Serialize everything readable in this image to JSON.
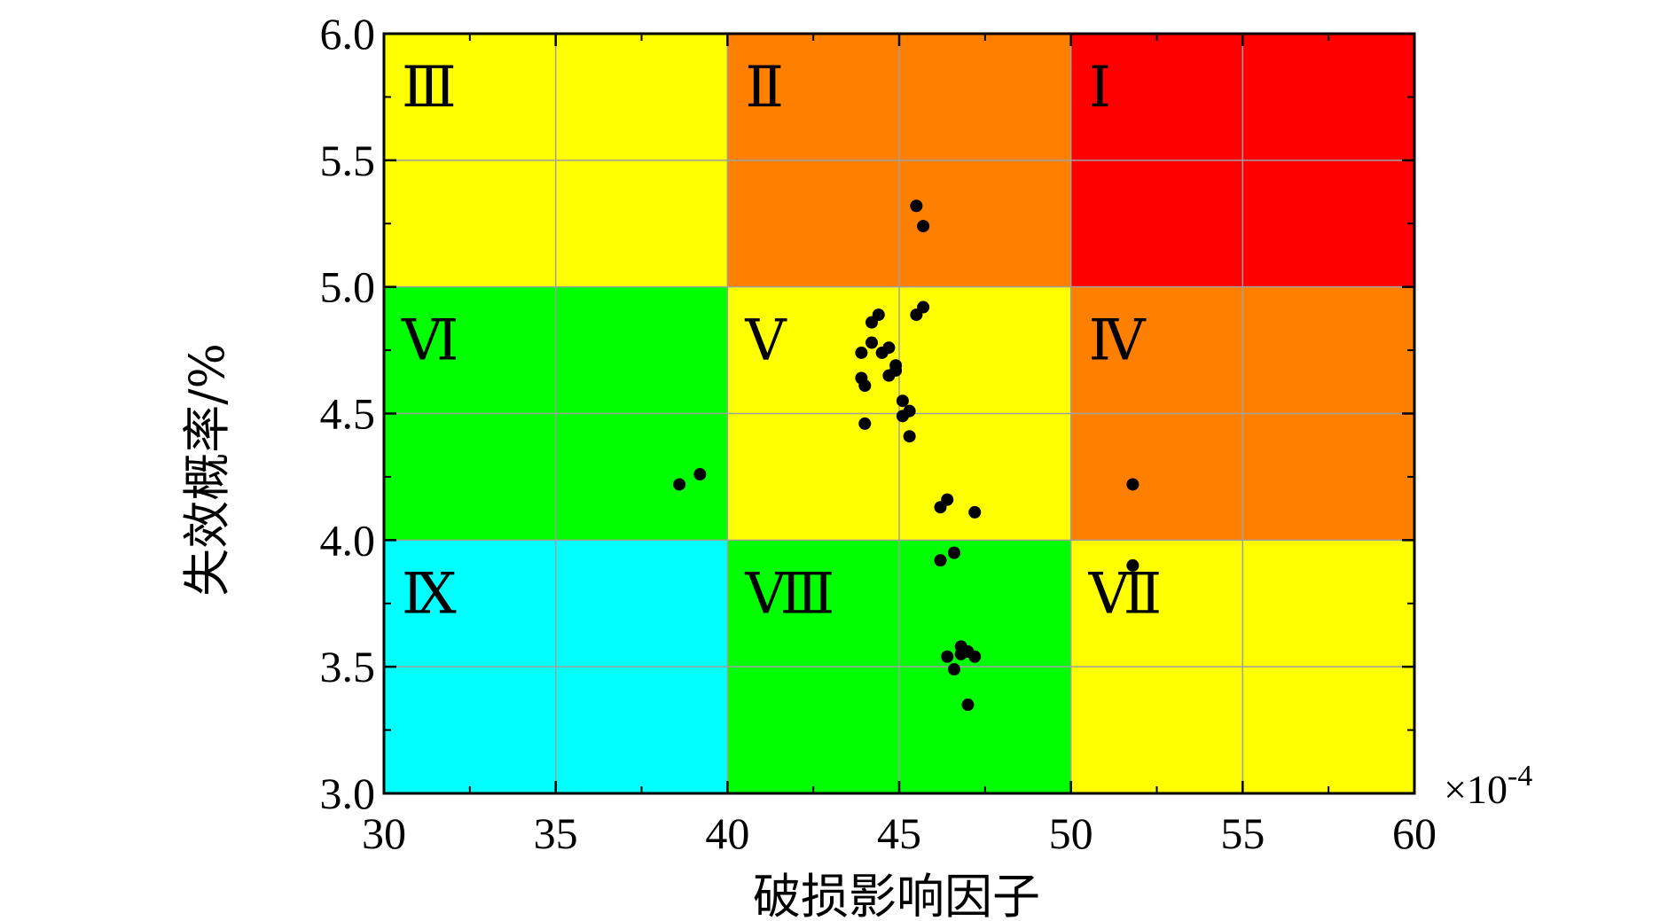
{
  "chart_data": {
    "type": "scatter",
    "title": "",
    "xlabel": "破损影响因子",
    "ylabel": "失效概率/%",
    "x_multiplier": "×10",
    "x_multiplier_exp": "-4",
    "xlim": [
      30,
      60
    ],
    "ylim": [
      3.0,
      6.0
    ],
    "xticks": [
      "30",
      "35",
      "40",
      "45",
      "50",
      "55",
      "60"
    ],
    "yticks": [
      "3.0",
      "3.5",
      "4.0",
      "4.5",
      "5.0",
      "5.5",
      "6.0"
    ],
    "grid": true,
    "regions": [
      {
        "label": "Ⅰ",
        "x": [
          50,
          60
        ],
        "y": [
          5,
          6
        ],
        "color": "#ff0000"
      },
      {
        "label": "Ⅱ",
        "x": [
          40,
          50
        ],
        "y": [
          5,
          6
        ],
        "color": "#ff8000"
      },
      {
        "label": "Ⅲ",
        "x": [
          30,
          40
        ],
        "y": [
          5,
          6
        ],
        "color": "#ffff00"
      },
      {
        "label": "Ⅳ",
        "x": [
          50,
          60
        ],
        "y": [
          4,
          5
        ],
        "color": "#ff8000"
      },
      {
        "label": "Ⅴ",
        "x": [
          40,
          50
        ],
        "y": [
          4,
          5
        ],
        "color": "#ffff00"
      },
      {
        "label": "Ⅵ",
        "x": [
          30,
          40
        ],
        "y": [
          4,
          5
        ],
        "color": "#00ff00"
      },
      {
        "label": "Ⅶ",
        "x": [
          50,
          60
        ],
        "y": [
          3,
          4
        ],
        "color": "#ffff00"
      },
      {
        "label": "Ⅷ",
        "x": [
          40,
          50
        ],
        "y": [
          3,
          4
        ],
        "color": "#00ff00"
      },
      {
        "label": "Ⅸ",
        "x": [
          30,
          40
        ],
        "y": [
          3,
          4
        ],
        "color": "#00ffff"
      }
    ],
    "series": [
      {
        "points": [
          [
            45.5,
            5.32
          ],
          [
            45.7,
            5.24
          ],
          [
            45.7,
            4.92
          ],
          [
            45.5,
            4.89
          ],
          [
            44.4,
            4.89
          ],
          [
            44.2,
            4.86
          ],
          [
            44.2,
            4.78
          ],
          [
            44.7,
            4.76
          ],
          [
            43.9,
            4.74
          ],
          [
            44.5,
            4.74
          ],
          [
            44.9,
            4.69
          ],
          [
            44.9,
            4.67
          ],
          [
            44.7,
            4.65
          ],
          [
            43.9,
            4.64
          ],
          [
            44.0,
            4.61
          ],
          [
            45.1,
            4.55
          ],
          [
            45.3,
            4.51
          ],
          [
            45.1,
            4.49
          ],
          [
            44.0,
            4.46
          ],
          [
            45.3,
            4.41
          ],
          [
            38.6,
            4.22
          ],
          [
            39.2,
            4.26
          ],
          [
            46.4,
            4.16
          ],
          [
            46.2,
            4.13
          ],
          [
            47.2,
            4.11
          ],
          [
            51.8,
            4.22
          ],
          [
            51.8,
            3.9
          ],
          [
            46.6,
            3.95
          ],
          [
            46.2,
            3.92
          ],
          [
            46.8,
            3.58
          ],
          [
            47.0,
            3.56
          ],
          [
            46.8,
            3.55
          ],
          [
            46.4,
            3.54
          ],
          [
            47.2,
            3.54
          ],
          [
            46.6,
            3.49
          ],
          [
            47.0,
            3.35
          ]
        ],
        "color": "#000000"
      }
    ]
  }
}
